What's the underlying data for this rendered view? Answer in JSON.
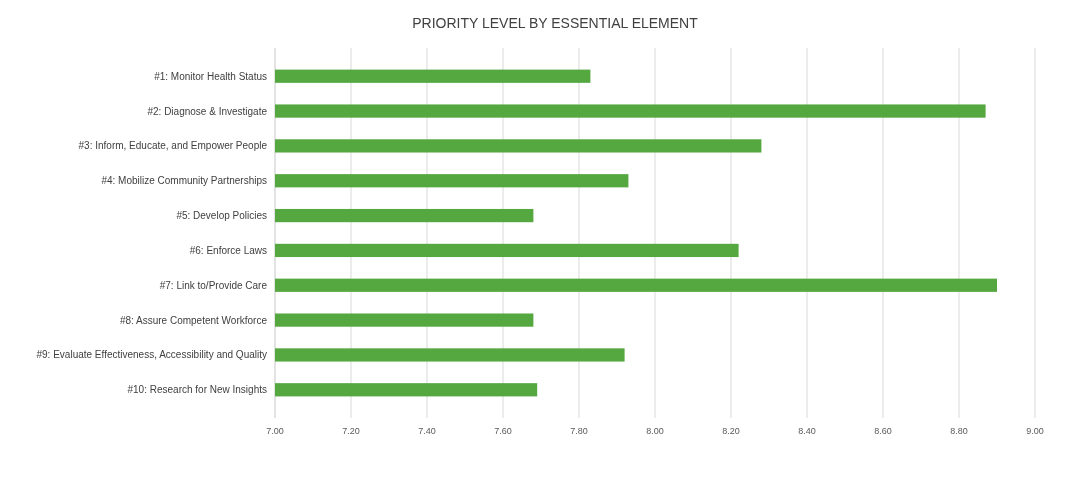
{
  "chart_data": {
    "type": "bar",
    "orientation": "horizontal",
    "title": "PRIORITY LEVEL BY ESSENTIAL ELEMENT",
    "categories": [
      "#1: Monitor Health Status",
      "#2: Diagnose & Investigate",
      "#3: Inform, Educate, and Empower People",
      "#4: Mobilize Community Partnerships",
      "#5: Develop Policies",
      "#6: Enforce Laws",
      "#7: Link to/Provide Care",
      "#8: Assure Competent Workforce",
      "#9: Evaluate Effectiveness, Accessibility and Quality",
      "#10: Research for New Insights"
    ],
    "values": [
      7.83,
      8.87,
      8.28,
      7.93,
      7.68,
      8.22,
      8.9,
      7.68,
      7.92,
      7.69
    ],
    "color": "#55a840",
    "xlim": [
      7,
      9
    ],
    "xticks": [
      {
        "value": 7,
        "label": "7.00"
      },
      {
        "value": 7.2,
        "label": "7.20"
      },
      {
        "value": 7.4,
        "label": "7.40"
      },
      {
        "value": 7.6,
        "label": "7.60"
      },
      {
        "value": 7.8,
        "label": "7.80"
      },
      {
        "value": 8,
        "label": "8.00"
      },
      {
        "value": 8.2,
        "label": "8.20"
      },
      {
        "value": 8.4,
        "label": "8.40"
      },
      {
        "value": 8.6,
        "label": "8.60"
      },
      {
        "value": 8.8,
        "label": "8.80"
      },
      {
        "value": 9,
        "label": "9.00"
      }
    ],
    "grid": "x"
  }
}
